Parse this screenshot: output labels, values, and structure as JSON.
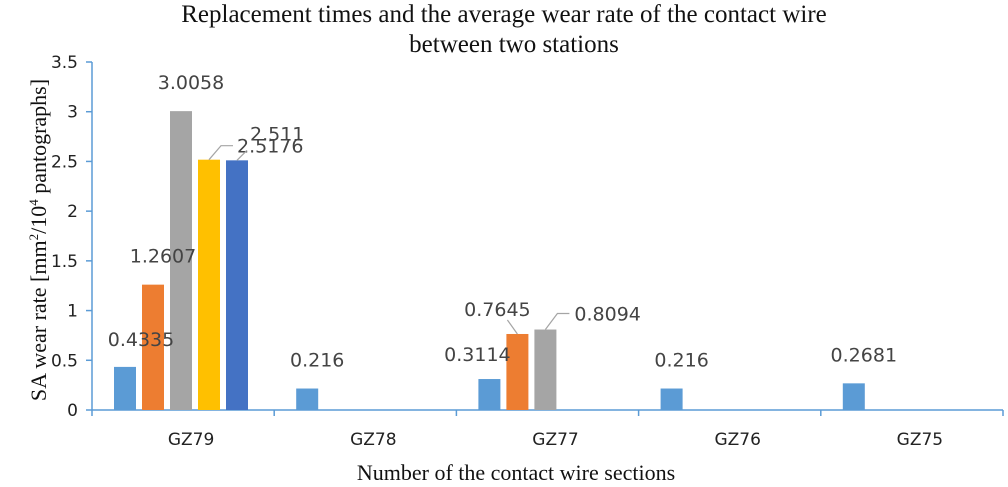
{
  "chart_data": {
    "type": "bar",
    "title_line1": "Replacement times and the average wear rate of the contact wire",
    "title_line2": "between two stations",
    "xlabel": "Number of the contact wire sections",
    "ylabel_part1": "SA wear rate [mm",
    "ylabel_sup1": "2",
    "ylabel_part2": "/10",
    "ylabel_sup2": "4",
    "ylabel_part3": " pantographs]",
    "ylim": [
      0,
      3.5
    ],
    "yticks": [
      "0",
      "0.5",
      "1",
      "1.5",
      "2",
      "2.5",
      "3",
      "3.5"
    ],
    "grid": false,
    "categories": [
      "GZ79",
      "GZ78",
      "GZ77",
      "GZ76",
      "GZ75"
    ],
    "series_colors": [
      "#5b9bd5",
      "#ed7d31",
      "#a5a5a5",
      "#ffc000",
      "#4472c4"
    ],
    "series": [
      {
        "values": [
          0.4335,
          0.216,
          0.3114,
          0.216,
          0.2681
        ],
        "labels": [
          "0.4335",
          "0.216",
          "0.3114",
          "0.216",
          "0.2681"
        ]
      },
      {
        "values": [
          1.2607,
          null,
          0.7645,
          null,
          null
        ],
        "labels": [
          "1.2607",
          "",
          "0.7645",
          "",
          ""
        ]
      },
      {
        "values": [
          3.0058,
          null,
          0.8094,
          null,
          null
        ],
        "labels": [
          "3.0058",
          "",
          "0.8094",
          "",
          ""
        ]
      },
      {
        "values": [
          2.5176,
          null,
          null,
          null,
          null
        ],
        "labels": [
          "2.5176",
          "",
          "",
          "",
          ""
        ]
      },
      {
        "values": [
          2.511,
          null,
          null,
          null,
          null
        ],
        "labels": [
          "2.511",
          "",
          "",
          "",
          ""
        ]
      }
    ]
  }
}
